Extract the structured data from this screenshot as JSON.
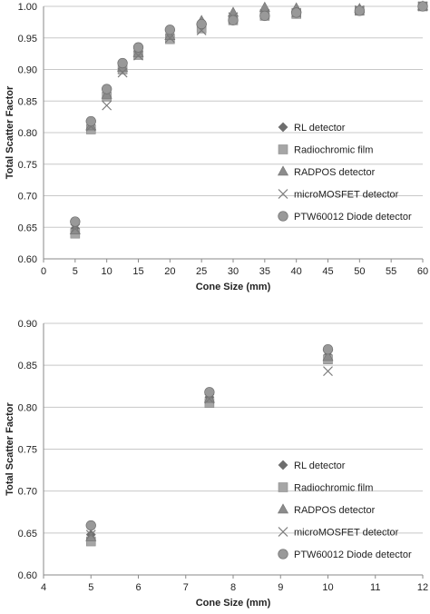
{
  "chart_data": [
    {
      "type": "scatter",
      "xlabel": "Cone Size (mm)",
      "ylabel": "Total Scatter Factor",
      "xlim": [
        0,
        60
      ],
      "ylim": [
        0.6,
        1.0
      ],
      "x_ticks": [
        "0",
        "5",
        "10",
        "15",
        "20",
        "25",
        "30",
        "35",
        "40",
        "45",
        "50",
        "55",
        "60"
      ],
      "y_ticks": [
        "0.60",
        "0.65",
        "0.70",
        "0.75",
        "0.80",
        "0.85",
        "0.90",
        "0.95",
        "1.00"
      ],
      "grid": "horizontal",
      "legend_position": "center-right",
      "series": [
        {
          "name": "RL detector",
          "marker": "diamond",
          "color": "#6e6e6e",
          "x": [
            5,
            7.5,
            10,
            12.5,
            15,
            20,
            25,
            30,
            35,
            40,
            50,
            60
          ],
          "y": [
            0.648,
            0.812,
            0.862,
            0.902,
            0.928,
            0.952,
            0.972,
            0.985,
            0.99,
            0.993,
            0.995,
            1.0
          ]
        },
        {
          "name": "Radiochromic film",
          "marker": "square",
          "color": "#a6a6a6",
          "x": [
            5,
            7.5,
            10,
            12.5,
            15,
            20,
            25,
            30,
            35,
            40,
            50,
            60
          ],
          "y": [
            0.64,
            0.805,
            0.857,
            0.9,
            0.923,
            0.948,
            0.965,
            0.978,
            0.985,
            0.988,
            0.993,
            1.0
          ]
        },
        {
          "name": "RADPOS detector",
          "marker": "triangle",
          "color": "#8c8c8c",
          "x": [
            5,
            7.5,
            10,
            12.5,
            15,
            20,
            25,
            30,
            35,
            40,
            50,
            60
          ],
          "y": [
            0.645,
            0.81,
            0.86,
            0.903,
            0.926,
            0.953,
            0.977,
            0.99,
            0.998,
            0.997,
            0.996,
            1.0
          ]
        },
        {
          "name": "microMOSFET detector",
          "marker": "x",
          "color": "#7a7a7a",
          "x": [
            5,
            7.5,
            10,
            12.5,
            15,
            20,
            25,
            30,
            35,
            40,
            50,
            60
          ],
          "y": [
            0.648,
            0.81,
            0.843,
            0.895,
            0.922,
            0.95,
            0.962,
            0.983,
            0.988,
            0.99,
            0.994,
            1.0
          ]
        },
        {
          "name": "PTW60012 Diode detector",
          "marker": "circle",
          "color": "#999999",
          "x": [
            5,
            7.5,
            10,
            12.5,
            15,
            20,
            25,
            30,
            35,
            40,
            50,
            60
          ],
          "y": [
            0.659,
            0.818,
            0.869,
            0.91,
            0.935,
            0.963,
            0.972,
            0.978,
            0.985,
            0.99,
            0.993,
            1.0
          ]
        }
      ]
    },
    {
      "type": "scatter",
      "xlabel": "Cone Size (mm)",
      "ylabel": "Total Scatter Factor",
      "xlim": [
        4,
        12
      ],
      "ylim": [
        0.6,
        0.9
      ],
      "x_ticks": [
        "4",
        "5",
        "6",
        "7",
        "8",
        "9",
        "10",
        "11",
        "12"
      ],
      "y_ticks": [
        "0.60",
        "0.65",
        "0.70",
        "0.75",
        "0.80",
        "0.85",
        "0.90"
      ],
      "grid": "horizontal",
      "legend_position": "bottom-right",
      "series": [
        {
          "name": "RL detector",
          "marker": "diamond",
          "color": "#6e6e6e",
          "x": [
            5,
            7.5,
            10
          ],
          "y": [
            0.648,
            0.812,
            0.862
          ]
        },
        {
          "name": "Radiochromic film",
          "marker": "square",
          "color": "#a6a6a6",
          "x": [
            5,
            7.5,
            10
          ],
          "y": [
            0.64,
            0.805,
            0.857
          ]
        },
        {
          "name": "RADPOS detector",
          "marker": "triangle",
          "color": "#8c8c8c",
          "x": [
            5,
            7.5,
            10
          ],
          "y": [
            0.645,
            0.81,
            0.86
          ]
        },
        {
          "name": "microMOSFET detector",
          "marker": "x",
          "color": "#7a7a7a",
          "x": [
            5,
            7.5,
            10
          ],
          "y": [
            0.648,
            0.81,
            0.843
          ]
        },
        {
          "name": "PTW60012 Diode detector",
          "marker": "circle",
          "color": "#999999",
          "x": [
            5,
            7.5,
            10
          ],
          "y": [
            0.659,
            0.818,
            0.869
          ]
        }
      ]
    }
  ]
}
